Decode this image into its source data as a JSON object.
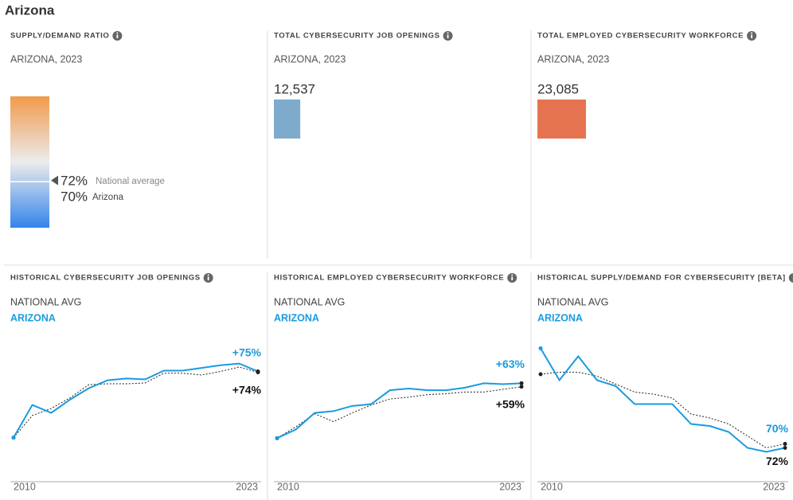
{
  "page_title": "Arizona",
  "chart_data": [
    {
      "type": "gauge",
      "title": "SUPPLY/DEMAND RATIO",
      "subtitle": "ARIZONA, 2023",
      "ylim": [
        0,
        200
      ],
      "colors": [
        "#f19a4c",
        "#ececec",
        "#3484ea"
      ],
      "series": [
        {
          "name": "National average",
          "color": "#555555",
          "values": [
            72
          ],
          "value_labels": [
            "72%"
          ]
        },
        {
          "name": "Arizona",
          "color": "#ffffff",
          "values": [
            70
          ],
          "value_labels": [
            "70%"
          ]
        }
      ]
    },
    {
      "type": "bar",
      "title": "TOTAL CYBERSECURITY JOB OPENINGS",
      "subtitle": "ARIZONA, 2023",
      "xlim": [
        0,
        25000
      ],
      "color": "#7eaacb",
      "values": [
        12537
      ],
      "value_labels": [
        "12,537"
      ]
    },
    {
      "type": "bar",
      "title": "TOTAL EMPLOYED CYBERSECURITY WORKFORCE",
      "subtitle": "ARIZONA, 2023",
      "xlim": [
        0,
        25000
      ],
      "color": "#e57350",
      "values": [
        23085
      ],
      "value_labels": [
        "23,085"
      ]
    },
    {
      "type": "line",
      "title": "HISTORICAL CYBERSECURITY JOB OPENINGS",
      "x": [
        2010,
        2011,
        2012,
        2013,
        2014,
        2015,
        2016,
        2017,
        2018,
        2019,
        2020,
        2021,
        2022,
        2023
      ],
      "xlim": [
        2010,
        2023
      ],
      "xticks": [
        2010,
        2023
      ],
      "ylim": [
        -50,
        108
      ],
      "series": [
        {
          "name": "NATIONAL AVG",
          "color": "#222222",
          "values": [
            0,
            25,
            33,
            45,
            60,
            61,
            61,
            62,
            73,
            73,
            71,
            75,
            80,
            74
          ],
          "value_labels": [
            null,
            null,
            null,
            null,
            null,
            null,
            null,
            null,
            null,
            null,
            null,
            null,
            null,
            "+74%"
          ]
        },
        {
          "name": "ARIZONA",
          "color": "#1a9ae0",
          "values": [
            0,
            37,
            28,
            43,
            56,
            65,
            67,
            66,
            76,
            76,
            79,
            82,
            84,
            75
          ],
          "value_labels": [
            null,
            null,
            null,
            null,
            null,
            null,
            null,
            null,
            null,
            null,
            null,
            null,
            null,
            "+75%"
          ]
        }
      ]
    },
    {
      "type": "line",
      "title": "HISTORICAL EMPLOYED CYBERSECURITY WORKFORCE",
      "x": [
        2010,
        2011,
        2012,
        2013,
        2014,
        2015,
        2016,
        2017,
        2018,
        2019,
        2020,
        2021,
        2022,
        2023
      ],
      "xlim": [
        2010,
        2023
      ],
      "xticks": [
        2010,
        2023
      ],
      "ylim": [
        -50,
        110
      ],
      "series": [
        {
          "name": "NATIONAL AVG",
          "color": "#222222",
          "values": [
            0,
            13,
            28,
            19,
            29,
            38,
            45,
            47,
            50,
            51,
            53,
            53,
            56,
            59
          ],
          "value_labels": [
            null,
            null,
            null,
            null,
            null,
            null,
            null,
            null,
            null,
            null,
            null,
            null,
            null,
            "+59%"
          ]
        },
        {
          "name": "ARIZONA",
          "color": "#1a9ae0",
          "values": [
            0,
            10,
            29,
            31,
            37,
            39,
            55,
            57,
            55,
            55,
            58,
            63,
            62,
            63
          ],
          "value_labels": [
            null,
            null,
            null,
            null,
            null,
            null,
            null,
            null,
            null,
            null,
            null,
            null,
            null,
            "+63%"
          ]
        }
      ]
    },
    {
      "type": "line",
      "title": "HISTORICAL SUPPLY/DEMAND FOR CYBERSECURITY [BETA]",
      "x": [
        2010,
        2011,
        2012,
        2013,
        2014,
        2015,
        2016,
        2017,
        2018,
        2019,
        2020,
        2021,
        2022,
        2023
      ],
      "xlim": [
        2010,
        2023
      ],
      "xticks": [
        2010,
        2023
      ],
      "ylim": [
        53,
        123
      ],
      "series": [
        {
          "name": "NATIONAL AVG",
          "color": "#222222",
          "values": [
            107,
            108,
            108,
            106,
            102,
            98,
            97,
            95,
            87,
            85,
            82,
            76,
            70,
            72
          ],
          "value_labels": [
            null,
            null,
            null,
            null,
            null,
            null,
            null,
            null,
            null,
            null,
            null,
            null,
            null,
            "72%"
          ]
        },
        {
          "name": "ARIZONA",
          "color": "#1a9ae0",
          "values": [
            120,
            104,
            116,
            104,
            101,
            92,
            92,
            92,
            82,
            81,
            78,
            70,
            68,
            70
          ],
          "value_labels": [
            null,
            null,
            null,
            null,
            null,
            null,
            null,
            null,
            null,
            null,
            null,
            null,
            null,
            "70%"
          ]
        }
      ]
    }
  ]
}
